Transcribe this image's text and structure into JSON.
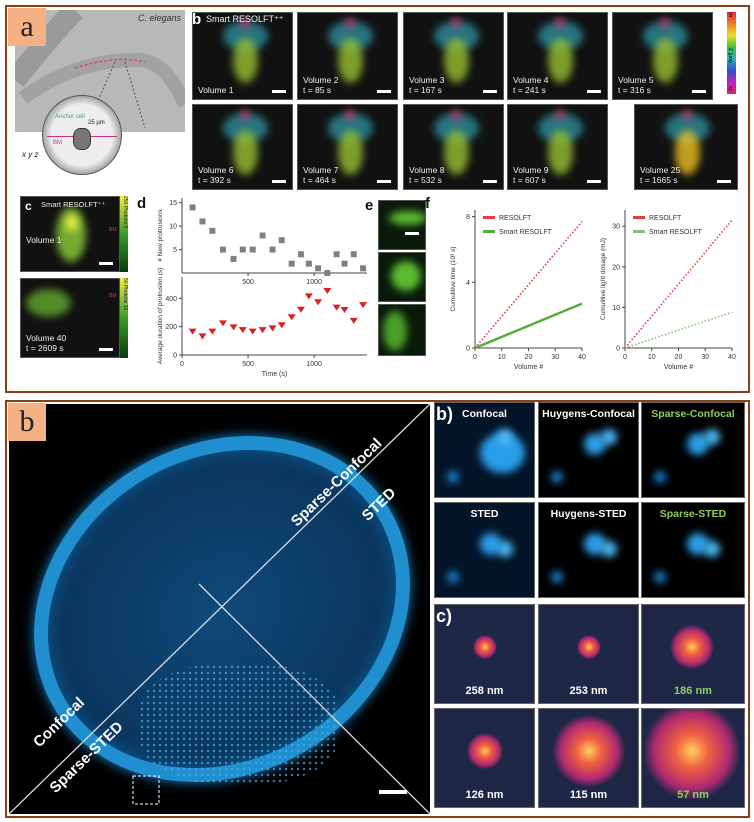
{
  "figure_a": {
    "tag": "a",
    "panel_a": {
      "species": "C. elegans",
      "anchor_cell": "Anchor cell",
      "scale": "25 µm",
      "bm": "BM",
      "axes": [
        "x",
        "y",
        "z"
      ]
    },
    "panel_b": {
      "label": "b",
      "title": "Smart RESOLFT⁺⁺",
      "colorbar": {
        "label": "Z (µm)",
        "min": "0",
        "max": "5"
      },
      "volumes": [
        {
          "name": "Volume 1",
          "time": ""
        },
        {
          "name": "Volume 2",
          "time": "t = 85 s"
        },
        {
          "name": "Volume 3",
          "time": "t = 167 s"
        },
        {
          "name": "Volume 4",
          "time": "t = 241 s"
        },
        {
          "name": "Volume 5",
          "time": "t = 316 s"
        },
        {
          "name": "Volume 6",
          "time": "t = 392 s"
        },
        {
          "name": "Volume 7",
          "time": "t = 464 s"
        },
        {
          "name": "Volume 8",
          "time": "t = 532 s"
        },
        {
          "name": "Volume 9",
          "time": "t = 607 s"
        },
        {
          "name": "Volume 25",
          "time": "t = 1665 s"
        }
      ]
    },
    "panel_c": {
      "label": "c",
      "title": "Smart RESOLFT⁺⁺",
      "bm": "BM",
      "top": {
        "name": "Volume 1",
        "cbar_label": "Photons",
        "cbar_max": "250",
        "cbar_min": "5"
      },
      "bottom": {
        "name": "Volume 40",
        "time": "t = 2609 s",
        "cbar_label": "Photons",
        "cbar_max": "50",
        "cbar_min": "10"
      }
    },
    "panel_e": {
      "label": "e"
    }
  },
  "chart_data": [
    {
      "panel": "d",
      "type": "scatter",
      "title": "d",
      "xlabel": "Time (s)",
      "ylabel": "# New protrusions",
      "xlim": [
        0,
        1400
      ],
      "ylim": [
        0,
        16
      ],
      "xticks": [
        "500",
        "1000"
      ],
      "yticks": [
        "5",
        "10",
        "15"
      ],
      "marker_color": "#808080",
      "x": [
        80,
        155,
        230,
        310,
        390,
        460,
        535,
        610,
        685,
        755,
        830,
        900,
        960,
        1030,
        1100,
        1170,
        1230,
        1300,
        1370
      ],
      "y": [
        14,
        11,
        9,
        5,
        3,
        5,
        5,
        8,
        5,
        7,
        2,
        4,
        2,
        1,
        0,
        4,
        2,
        4,
        1
      ]
    },
    {
      "panel": "d",
      "type": "scatter",
      "xlabel": "Time (s)",
      "ylabel": "Average duration of protrusion (s)",
      "xlim": [
        0,
        1400
      ],
      "ylim": [
        0,
        550
      ],
      "xticks": [
        "0",
        "500",
        "1000"
      ],
      "yticks": [
        "0",
        "200",
        "400"
      ],
      "marker_color": "#e02020",
      "x": [
        80,
        155,
        230,
        310,
        390,
        460,
        535,
        610,
        685,
        755,
        830,
        900,
        960,
        1030,
        1100,
        1170,
        1230,
        1300,
        1370
      ],
      "y": [
        165,
        131,
        165,
        223,
        195,
        175,
        165,
        175,
        188,
        210,
        266,
        319,
        413,
        372,
        451,
        334,
        317,
        241,
        352
      ]
    },
    {
      "panel": "f",
      "type": "line",
      "title": "f",
      "xlabel": "Volume #",
      "ylabel": "Cumulitive time (10³ s)",
      "xlim": [
        0,
        40
      ],
      "ylim": [
        0,
        8.4
      ],
      "xticks": [
        "0",
        "10",
        "20",
        "30",
        "40"
      ],
      "yticks": [
        "0",
        "4",
        "8"
      ],
      "series": [
        {
          "name": "RESOLFT",
          "color": "#e83a3a",
          "x": [
            0,
            40
          ],
          "y": [
            0,
            7.7
          ]
        },
        {
          "name": "Smart RESOLFT",
          "color": "#4fae3c",
          "x": [
            0,
            40
          ],
          "y": [
            0,
            2.7
          ]
        }
      ]
    },
    {
      "panel": "f",
      "type": "line",
      "xlabel": "Volume #",
      "ylabel": "Cumulitive light dosage (mJ)",
      "xlim": [
        0,
        40
      ],
      "ylim": [
        0,
        34
      ],
      "xticks": [
        "0",
        "10",
        "20",
        "30",
        "40"
      ],
      "yticks": [
        "0",
        "10",
        "20",
        "30"
      ],
      "series": [
        {
          "name": "RESOLFT",
          "color": "#e83a3a",
          "x": [
            0,
            40
          ],
          "y": [
            0,
            31.5
          ]
        },
        {
          "name": "Smart RESOLFT",
          "color": "#7cc765",
          "x": [
            0,
            40
          ],
          "y": [
            0,
            8.8
          ]
        }
      ]
    }
  ],
  "figure_b": {
    "tag": "b",
    "main": {
      "labels": [
        "Sparse-Confocal",
        "STED",
        "Confocal",
        "Sparse-STED"
      ]
    },
    "panel_b": {
      "label": "b)",
      "tiles": [
        "Confocal",
        "Huygens-Confocal",
        "Sparse-Confocal",
        "STED",
        "Huygens-STED",
        "Sparse-STED"
      ]
    },
    "panel_c": {
      "label": "c)",
      "tiles": [
        "258 nm",
        "253 nm",
        "186 nm",
        "126 nm",
        "115 nm",
        "57 nm"
      ]
    }
  }
}
